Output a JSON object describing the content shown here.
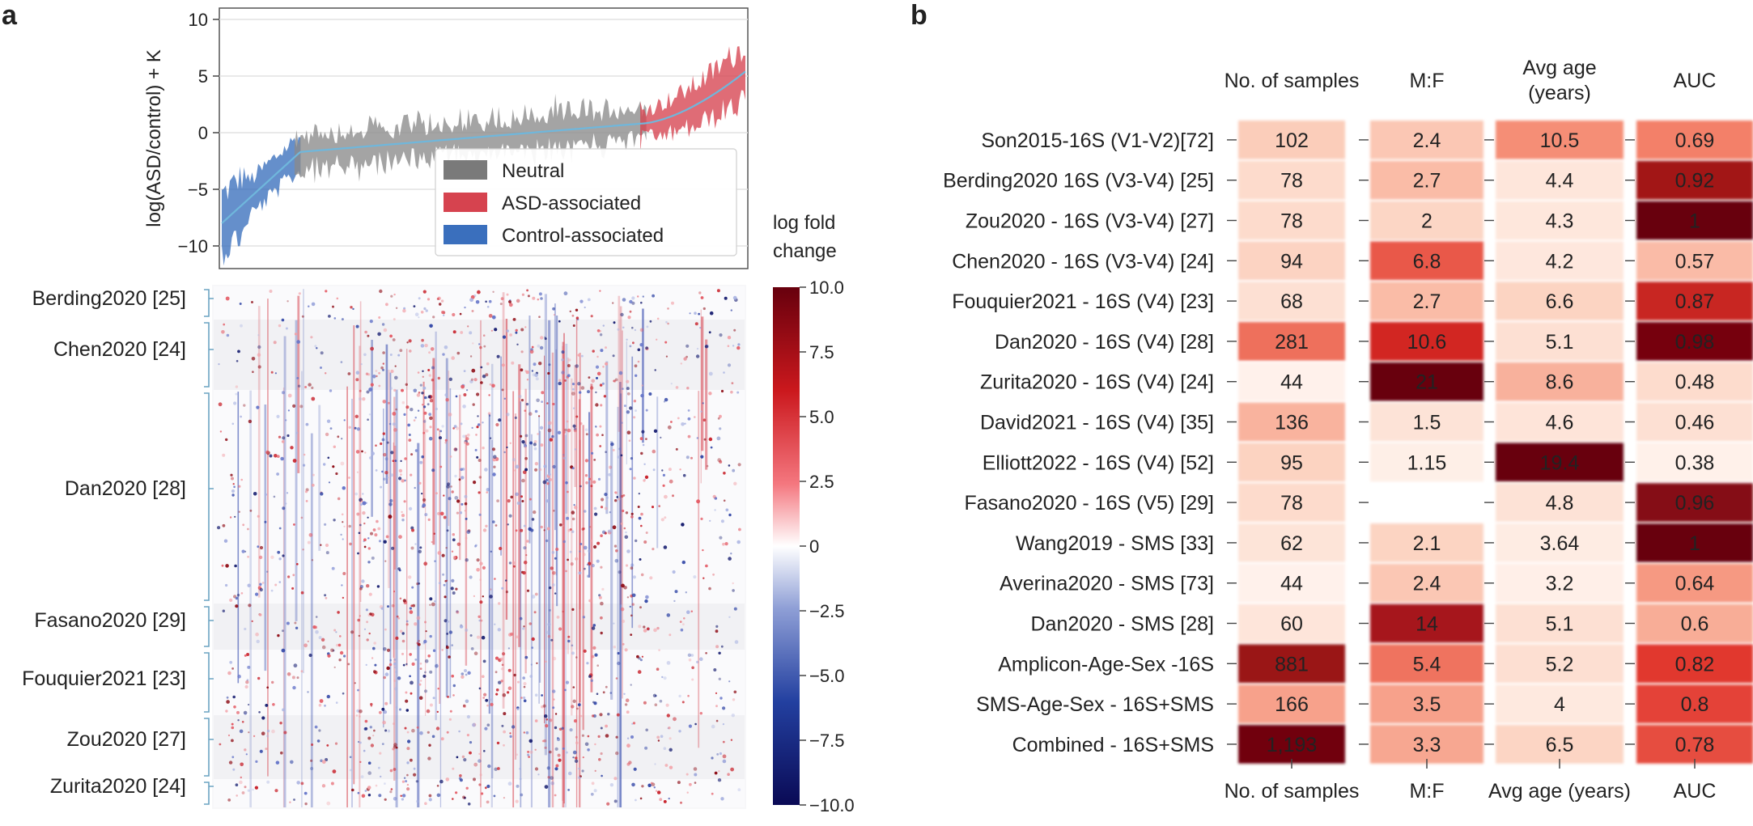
{
  "panel_a": {
    "letter": "a",
    "line": {
      "ylabel": "log(ASD/control) + K",
      "yticks": [
        "10",
        "5",
        "0",
        "−5",
        "−10"
      ],
      "ylim": [
        -12,
        11
      ],
      "legend": [
        {
          "label": "Neutral",
          "color": "#7a7a7a"
        },
        {
          "label": "ASD-associated",
          "color": "#d6434f"
        },
        {
          "label": "Control-associated",
          "color": "#3a6fbd"
        }
      ]
    },
    "heatmap": {
      "studies": [
        "Berding2020 [25]",
        "Chen2020 [24]",
        "Dan2020 [28]",
        "Fasano2020 [29]",
        "Fouquier2021 [23]",
        "Zou2020 [27]",
        "Zurita2020 [24]"
      ],
      "colorbar_title": "log fold change",
      "colorbar_ticks": [
        "10.0",
        "7.5",
        "5.0",
        "2.5",
        "0",
        "−2.5",
        "−5.0",
        "−7.5",
        "−10.0"
      ],
      "range": [
        -10,
        10
      ]
    }
  },
  "panel_b": {
    "letter": "b",
    "columns": [
      "No. of samples",
      "M:F",
      "Avg age (years)",
      "AUC"
    ],
    "top_headers": [
      "No. of samples",
      "M:F",
      "Avg age",
      "(years)",
      "AUC"
    ],
    "rows": [
      {
        "study": "Son2015-16S (V1-V2)[72]",
        "samples": "102",
        "mf": "2.4",
        "age": "10.5",
        "auc": "0.69"
      },
      {
        "study": "Berding2020 16S (V3-V4) [25]",
        "samples": "78",
        "mf": "2.7",
        "age": "4.4",
        "auc": "0.92"
      },
      {
        "study": "Zou2020 - 16S (V3-V4) [27]",
        "samples": "78",
        "mf": "2",
        "age": "4.3",
        "auc": "1"
      },
      {
        "study": "Chen2020 - 16S (V3-V4) [24]",
        "samples": "94",
        "mf": "6.8",
        "age": "4.2",
        "auc": "0.57"
      },
      {
        "study": "Fouquier2021 - 16S (V4) [23]",
        "samples": "68",
        "mf": "2.7",
        "age": "6.6",
        "auc": "0.87"
      },
      {
        "study": "Dan2020 - 16S (V4) [28]",
        "samples": "281",
        "mf": "10.6",
        "age": "5.1",
        "auc": "0.98"
      },
      {
        "study": "Zurita2020 - 16S (V4) [24]",
        "samples": "44",
        "mf": "21",
        "age": "8.6",
        "auc": "0.48"
      },
      {
        "study": "David2021 - 16S (V4) [35]",
        "samples": "136",
        "mf": "1.5",
        "age": "4.6",
        "auc": "0.46"
      },
      {
        "study": "Elliott2022 - 16S (V4) [52]",
        "samples": "95",
        "mf": "1.15",
        "age": "19.4",
        "auc": "0.38"
      },
      {
        "study": "Fasano2020 - 16S (V5) [29]",
        "samples": "78",
        "mf": "",
        "age": "4.8",
        "auc": "0.96"
      },
      {
        "study": "Wang2019 - SMS [33]",
        "samples": "62",
        "mf": "2.1",
        "age": "3.64",
        "auc": "1"
      },
      {
        "study": "Averina2020 - SMS [73]",
        "samples": "44",
        "mf": "2.4",
        "age": "3.2",
        "auc": "0.64"
      },
      {
        "study": "Dan2020 - SMS [28]",
        "samples": "60",
        "mf": "14",
        "age": "5.1",
        "auc": "0.6"
      },
      {
        "study": "Amplicon-Age-Sex -16S",
        "samples": "881",
        "mf": "5.4",
        "age": "5.2",
        "auc": "0.82"
      },
      {
        "study": "SMS-Age-Sex - 16S+SMS",
        "samples": "166",
        "mf": "3.5",
        "age": "4",
        "auc": "0.8"
      },
      {
        "study": "Combined - 16S+SMS",
        "samples": "1,193",
        "mf": "3.3",
        "age": "6.5",
        "auc": "0.78"
      }
    ]
  },
  "chart_data": [
    {
      "type": "line",
      "title": "",
      "xlabel": "",
      "ylabel": "log(ASD/control) + K",
      "ylim": [
        -12,
        11
      ],
      "yticks": [
        -10,
        -5,
        0,
        5,
        10
      ],
      "grid": true,
      "legend_position": "bottom-right",
      "series": [
        {
          "name": "Neutral",
          "color": "#7a7a7a"
        },
        {
          "name": "ASD-associated",
          "color": "#d6434f"
        },
        {
          "name": "Control-associated",
          "color": "#3a6fbd"
        }
      ]
    },
    {
      "type": "heatmap",
      "title": "",
      "rows": [
        "Berding2020 [25]",
        "Chen2020 [24]",
        "Dan2020 [28]",
        "Fasano2020 [29]",
        "Fouquier2021 [23]",
        "Zou2020 [27]",
        "Zurita2020 [24]"
      ],
      "colorbar_label": "log fold change",
      "range": [
        -10,
        10
      ],
      "colorbar_ticks": [
        10,
        7.5,
        5,
        2.5,
        0,
        -2.5,
        -5,
        -7.5,
        -10
      ]
    },
    {
      "type": "table",
      "columns": [
        "No. of samples",
        "M:F",
        "Avg age (years)",
        "AUC"
      ],
      "rows": [
        "Son2015-16S (V1-V2)[72]",
        "Berding2020 16S (V3-V4) [25]",
        "Zou2020 - 16S (V3-V4) [27]",
        "Chen2020 - 16S (V3-V4) [24]",
        "Fouquier2021 - 16S (V4) [23]",
        "Dan2020 - 16S (V4) [28]",
        "Zurita2020 - 16S (V4) [24]",
        "David2021 - 16S (V4) [35]",
        "Elliott2022 - 16S (V4) [52]",
        "Fasano2020 - 16S (V5) [29]",
        "Wang2019 - SMS [33]",
        "Averina2020 - SMS [73]",
        "Dan2020 - SMS [28]",
        "Amplicon-Age-Sex -16S",
        "SMS-Age-Sex - 16S+SMS",
        "Combined - 16S+SMS"
      ],
      "samples": [
        102,
        78,
        78,
        94,
        68,
        281,
        44,
        136,
        95,
        78,
        62,
        44,
        60,
        881,
        166,
        1193
      ],
      "mf": [
        2.4,
        2.7,
        2,
        6.8,
        2.7,
        10.6,
        21,
        1.5,
        1.15,
        null,
        2.1,
        2.4,
        14,
        5.4,
        3.5,
        3.3
      ],
      "avg_age": [
        10.5,
        4.4,
        4.3,
        4.2,
        6.6,
        5.1,
        8.6,
        4.6,
        19.4,
        4.8,
        3.64,
        3.2,
        5.1,
        5.2,
        4,
        6.5
      ],
      "auc": [
        0.69,
        0.92,
        1,
        0.57,
        0.87,
        0.98,
        0.48,
        0.46,
        0.38,
        0.96,
        1,
        0.64,
        0.6,
        0.82,
        0.8,
        0.78
      ]
    }
  ]
}
